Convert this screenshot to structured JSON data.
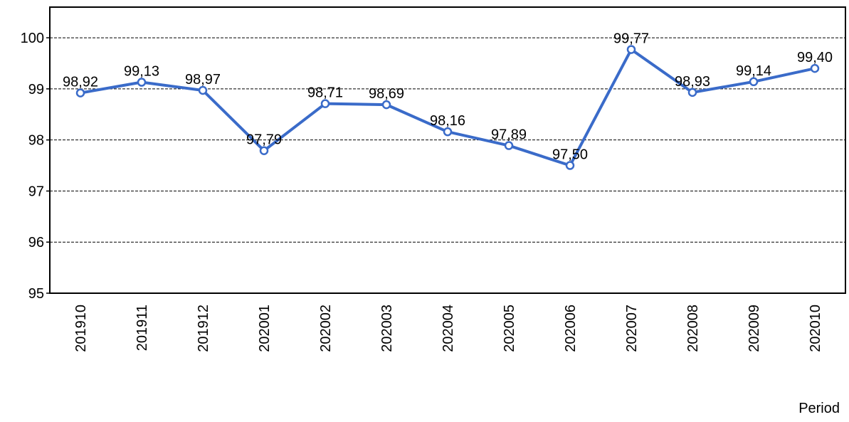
{
  "chart_data": {
    "type": "line",
    "x_label": "Period",
    "categories": [
      "201910",
      "201911",
      "201912",
      "202001",
      "202002",
      "202003",
      "202004",
      "202005",
      "202006",
      "202007",
      "202008",
      "202009",
      "202010"
    ],
    "series": [
      {
        "color": "#3a6bc9",
        "values": [
          98.92,
          99.13,
          98.97,
          97.79,
          98.71,
          98.69,
          98.16,
          97.89,
          97.5,
          99.77,
          98.93,
          99.14,
          99.4
        ],
        "value_labels": [
          "98,92",
          "99,13",
          "98,97",
          "97,79",
          "98,71",
          "98,69",
          "98,16",
          "97,89",
          "97,50",
          "99,77",
          "98,93",
          "99,14",
          "99,40"
        ]
      }
    ],
    "ylim": [
      95,
      100.6
    ],
    "yticks": [
      95,
      96,
      97,
      98,
      99,
      100
    ],
    "grid": true
  }
}
